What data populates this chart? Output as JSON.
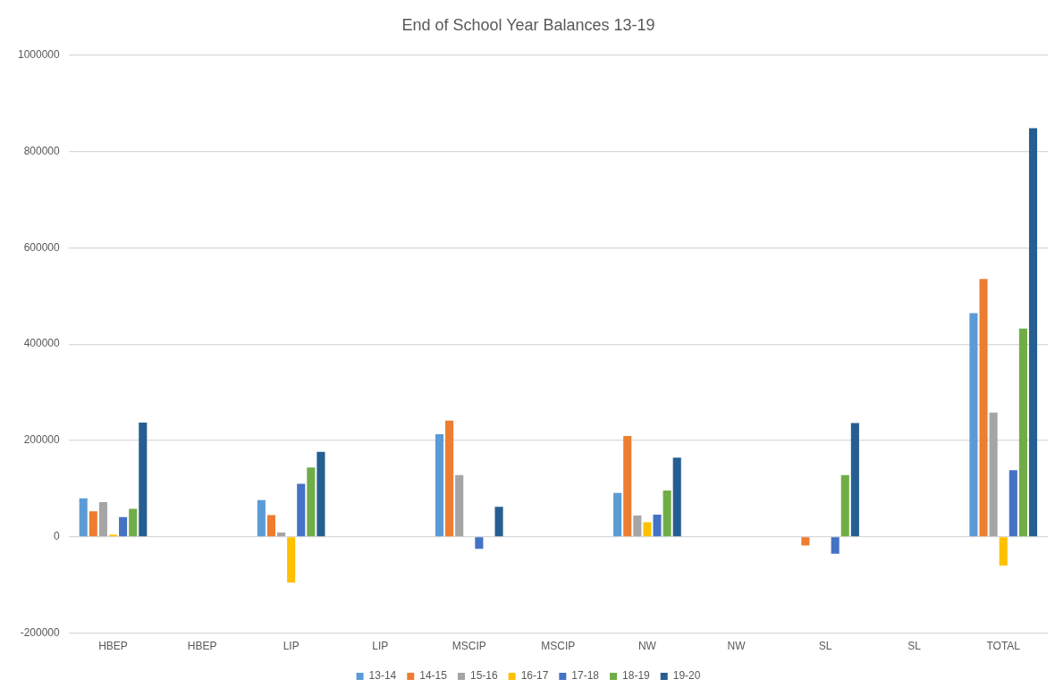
{
  "chart_data": {
    "type": "bar",
    "title": "End of School Year Balances 13-19",
    "categories": [
      "HBEP",
      "HBEP",
      "LIP",
      "LIP",
      "MSCIP",
      "MSCIP",
      "NW",
      "NW",
      "SL",
      "SL",
      "TOTAL"
    ],
    "series": [
      {
        "name": "13-14",
        "color": "#5b9bd5",
        "values": [
          80000,
          null,
          76000,
          null,
          213000,
          null,
          91000,
          null,
          null,
          null,
          464000
        ]
      },
      {
        "name": "14-15",
        "color": "#ed7d31",
        "values": [
          53000,
          null,
          45000,
          null,
          241000,
          null,
          209000,
          null,
          -18000,
          null,
          535000
        ]
      },
      {
        "name": "15-16",
        "color": "#a5a5a5",
        "values": [
          72000,
          null,
          9000,
          null,
          128000,
          null,
          44000,
          null,
          null,
          null,
          258000
        ]
      },
      {
        "name": "16-17",
        "color": "#ffc000",
        "values": [
          4000,
          null,
          -95000,
          null,
          null,
          null,
          30000,
          null,
          null,
          null,
          -60000
        ]
      },
      {
        "name": "17-18",
        "color": "#4472c4",
        "values": [
          41000,
          null,
          110000,
          null,
          -25000,
          null,
          46000,
          null,
          -35000,
          null,
          138000
        ]
      },
      {
        "name": "18-19",
        "color": "#70ad47",
        "values": [
          58000,
          null,
          144000,
          null,
          null,
          null,
          96000,
          null,
          128000,
          null,
          432000
        ]
      },
      {
        "name": "19-20",
        "color": "#255e91",
        "values": [
          237000,
          null,
          176000,
          null,
          62000,
          null,
          164000,
          null,
          236000,
          null,
          848000
        ]
      }
    ],
    "ylim": [
      -200000,
      1000000
    ],
    "yticks": [
      -200000,
      0,
      200000,
      400000,
      600000,
      800000,
      1000000
    ],
    "grid": "y",
    "legend": "bottom"
  }
}
